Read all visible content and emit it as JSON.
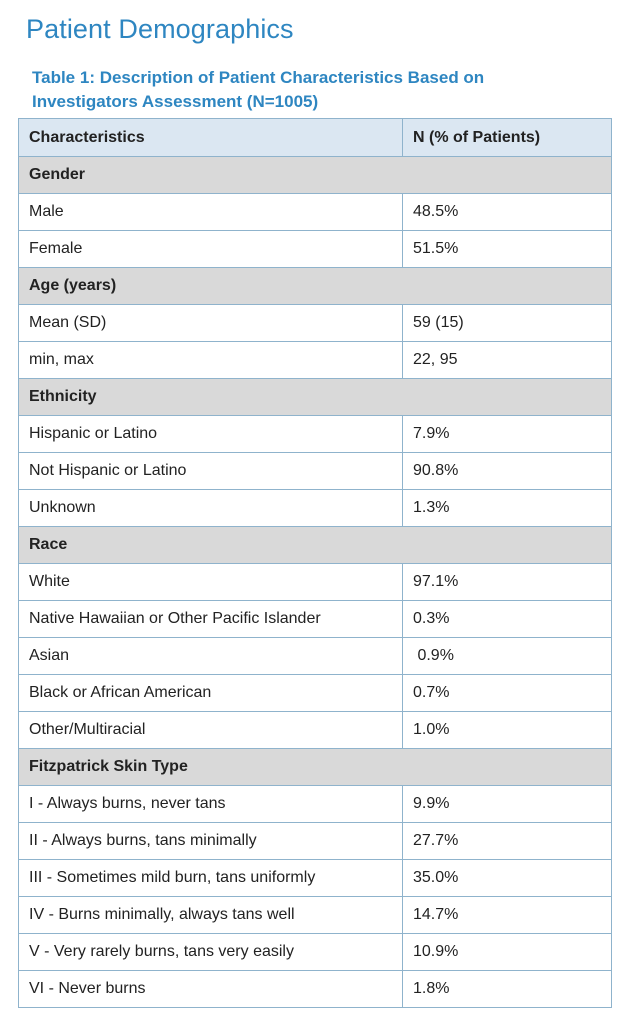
{
  "page_title": "Patient Demographics",
  "table_caption": "Table 1: Description of Patient Characteristics Based on Investigators Assessment (N=1005)",
  "table": {
    "headers": [
      "Characteristics",
      "N (% of Patients)"
    ],
    "sections": [
      {
        "title": "Gender",
        "rows": [
          [
            "Male",
            "48.5%"
          ],
          [
            "Female",
            "51.5%"
          ]
        ]
      },
      {
        "title": "Age (years)",
        "rows": [
          [
            "Mean (SD)",
            "59 (15)"
          ],
          [
            "min, max",
            "22, 95"
          ]
        ]
      },
      {
        "title": "Ethnicity",
        "rows": [
          [
            "Hispanic or Latino",
            "7.9%"
          ],
          [
            "Not Hispanic or Latino",
            "90.8%"
          ],
          [
            "Unknown",
            "1.3%"
          ]
        ]
      },
      {
        "title": "Race",
        "rows": [
          [
            "White",
            "97.1%"
          ],
          [
            "Native Hawaiian or Other Pacific Islander",
            "0.3%"
          ],
          [
            "Asian",
            " 0.9%"
          ],
          [
            "Black or African American",
            "0.7%"
          ],
          [
            "Other/Multiracial",
            "1.0%"
          ]
        ]
      },
      {
        "title": "Fitzpatrick Skin Type",
        "rows": [
          [
            "I - Always burns, never tans",
            "9.9%"
          ],
          [
            "II - Always burns, tans minimally",
            "27.7%"
          ],
          [
            "III - Sometimes mild burn, tans uniformly",
            "35.0%"
          ],
          [
            "IV - Burns minimally, always tans well",
            "14.7%"
          ],
          [
            "V - Very rarely burns, tans very easily",
            "10.9%"
          ],
          [
            "VI - Never burns",
            "1.8%"
          ]
        ]
      }
    ]
  }
}
